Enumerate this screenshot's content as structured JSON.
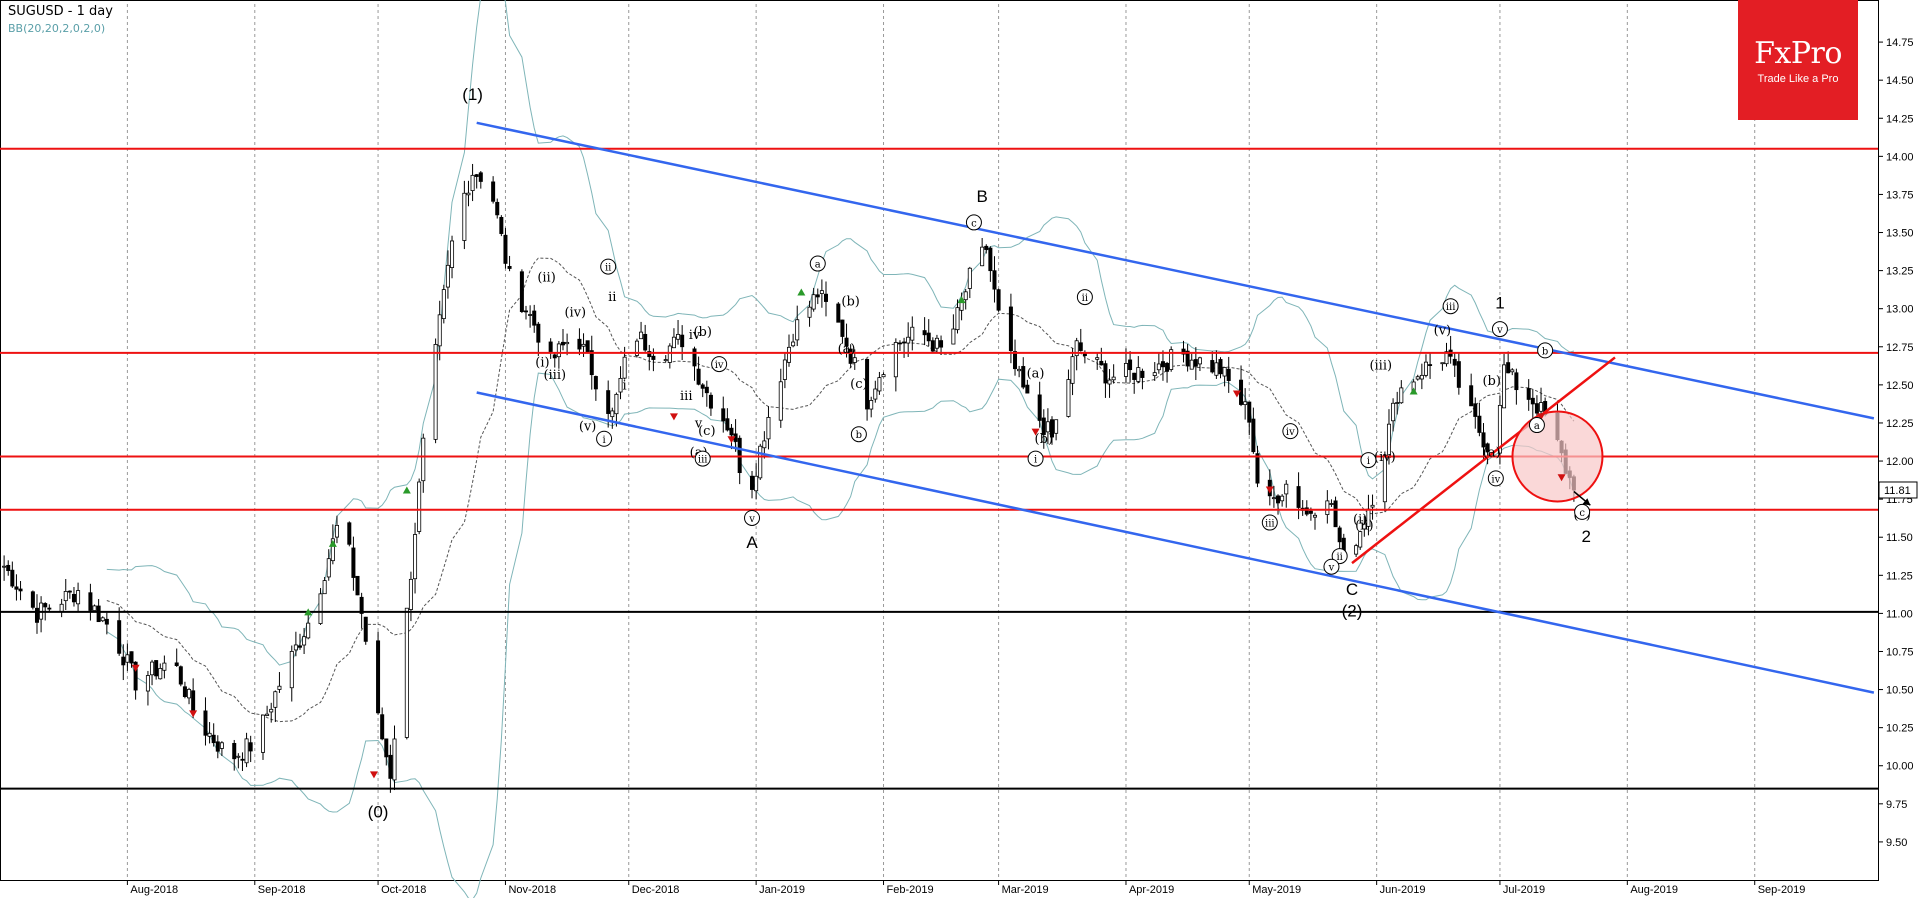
{
  "header": {
    "title": "SUGUSD - 1 day",
    "indicator": "BB(20,20,2,0,2,0)"
  },
  "logo": {
    "brand": "FxPro",
    "tagline": "Trade Like a Pro"
  },
  "current_price": "11.81",
  "colors": {
    "candle": "#000000",
    "bollinger": "#7fb5b8",
    "bollinger_mid": "#555555",
    "resistance": "#ee1111",
    "channel": "#3366ee",
    "support_black": "#000000",
    "highlight_circle": "#f8c8c8",
    "logo_bg": "#e31e24"
  },
  "chart_data": {
    "type": "candlestick",
    "symbol": "SUGUSD",
    "timeframe": "1 day",
    "ylim": [
      9.25,
      15.0
    ],
    "y_ticks": [
      "9.50",
      "9.75",
      "10.00",
      "10.25",
      "10.50",
      "10.75",
      "11.00",
      "11.25",
      "11.50",
      "11.75",
      "12.00",
      "12.25",
      "12.50",
      "12.75",
      "13.00",
      "13.25",
      "13.50",
      "13.75",
      "14.00",
      "14.25",
      "14.50",
      "14.75"
    ],
    "x_ticks": [
      "Aug-2018",
      "Sep-2018",
      "Oct-2018",
      "Nov-2018",
      "Dec-2018",
      "Jan-2019",
      "Feb-2019",
      "Mar-2019",
      "Apr-2019",
      "May-2019",
      "Jun-2019",
      "Jul-2019",
      "Aug-2019",
      "Sep-2019"
    ],
    "horizontal_levels": {
      "red": [
        14.05,
        12.71,
        12.03,
        11.68
      ],
      "black": [
        11.01,
        9.85
      ]
    },
    "channel_upper": [
      {
        "date": "2018-10-25",
        "price": 14.22
      },
      {
        "date": "2019-09-30",
        "price": 12.28
      }
    ],
    "channel_lower": [
      {
        "date": "2018-10-25",
        "price": 12.45
      },
      {
        "date": "2019-09-30",
        "price": 10.48
      }
    ],
    "trendline_red": [
      {
        "date": "2019-05-26",
        "price": 11.33
      },
      {
        "date": "2019-07-29",
        "price": 12.68
      }
    ],
    "path": [
      [
        "2018-07-01",
        11.35
      ],
      [
        "2018-07-10",
        11.0
      ],
      [
        "2018-07-20",
        11.15
      ],
      [
        "2018-07-28",
        10.9
      ],
      [
        "2018-08-03",
        10.55
      ],
      [
        "2018-08-12",
        10.7
      ],
      [
        "2018-08-18",
        10.3
      ],
      [
        "2018-08-26",
        10.05
      ],
      [
        "2018-09-01",
        10.15
      ],
      [
        "2018-09-08",
        10.6
      ],
      [
        "2018-09-15",
        11.0
      ],
      [
        "2018-09-22",
        11.65
      ],
      [
        "2018-09-27",
        11.0
      ],
      [
        "2018-10-01",
        10.3
      ],
      [
        "2018-10-04",
        9.95
      ],
      [
        "2018-10-08",
        11.0
      ],
      [
        "2018-10-12",
        12.1
      ],
      [
        "2018-10-16",
        12.9
      ],
      [
        "2018-10-20",
        13.6
      ],
      [
        "2018-10-24",
        13.9
      ],
      [
        "2018-10-28",
        13.85
      ],
      [
        "2018-11-02",
        13.2
      ],
      [
        "2018-11-08",
        12.9
      ],
      [
        "2018-11-12",
        12.65
      ],
      [
        "2018-11-18",
        12.85
      ],
      [
        "2018-11-22",
        12.6
      ],
      [
        "2018-11-27",
        12.3
      ],
      [
        "2018-12-02",
        12.85
      ],
      [
        "2018-12-08",
        12.7
      ],
      [
        "2018-12-14",
        12.8
      ],
      [
        "2018-12-20",
        12.45
      ],
      [
        "2018-12-26",
        12.2
      ],
      [
        "2018-12-30",
        11.75
      ],
      [
        "2019-01-04",
        12.3
      ],
      [
        "2019-01-10",
        12.85
      ],
      [
        "2019-01-16",
        13.1
      ],
      [
        "2019-01-22",
        12.85
      ],
      [
        "2019-01-28",
        12.4
      ],
      [
        "2019-02-03",
        12.75
      ],
      [
        "2019-02-10",
        12.85
      ],
      [
        "2019-02-16",
        12.7
      ],
      [
        "2019-02-22",
        13.2
      ],
      [
        "2019-02-26",
        13.4
      ],
      [
        "2019-03-02",
        12.8
      ],
      [
        "2019-03-08",
        12.4
      ],
      [
        "2019-03-14",
        12.15
      ],
      [
        "2019-03-20",
        12.75
      ],
      [
        "2019-03-28",
        12.55
      ],
      [
        "2019-04-06",
        12.6
      ],
      [
        "2019-04-15",
        12.7
      ],
      [
        "2019-04-24",
        12.6
      ],
      [
        "2019-05-01",
        12.3
      ],
      [
        "2019-05-04",
        11.65
      ],
      [
        "2019-05-10",
        11.85
      ],
      [
        "2019-05-15",
        11.65
      ],
      [
        "2019-05-20",
        11.8
      ],
      [
        "2019-05-24",
        11.35
      ],
      [
        "2019-05-28",
        11.55
      ],
      [
        "2019-06-01",
        11.85
      ],
      [
        "2019-06-06",
        12.45
      ],
      [
        "2019-06-12",
        12.6
      ],
      [
        "2019-06-18",
        12.7
      ],
      [
        "2019-06-24",
        12.3
      ],
      [
        "2019-06-29",
        12.05
      ],
      [
        "2019-07-02",
        12.6
      ],
      [
        "2019-07-05",
        12.5
      ],
      [
        "2019-07-09",
        12.4
      ],
      [
        "2019-07-13",
        12.25
      ],
      [
        "2019-07-17",
        11.95
      ],
      [
        "2019-07-19",
        11.81
      ]
    ],
    "wave_labels": [
      {
        "text": "(1)",
        "date": "2018-10-24",
        "price": 14.37
      },
      {
        "text": "(0)",
        "date": "2018-10-01",
        "price": 9.66
      },
      {
        "text": "B",
        "date": "2019-02-25",
        "price": 13.7
      },
      {
        "text": "A",
        "date": "2018-12-31",
        "price": 11.43
      },
      {
        "text": "C",
        "date": "2019-05-26",
        "price": 11.12
      },
      {
        "text": "(2)",
        "date": "2019-05-26",
        "price": 10.98
      },
      {
        "text": "1",
        "date": "2019-07-01",
        "price": 13.0
      },
      {
        "text": "2",
        "date": "2019-07-22",
        "price": 11.47
      },
      {
        "text": "ii",
        "date": "2018-11-27",
        "price": 13.05
      },
      {
        "text": "i",
        "date": "2018-11-30",
        "price": 12.47
      },
      {
        "text": "iii",
        "date": "2018-12-15",
        "price": 12.4
      },
      {
        "text": "v",
        "date": "2018-12-18",
        "price": 12.22
      },
      {
        "text": "iv",
        "date": "2018-12-17",
        "price": 12.8
      },
      {
        "text": "(i)",
        "date": "2018-11-10",
        "price": 12.62
      },
      {
        "text": "(ii)",
        "date": "2018-11-11",
        "price": 13.18
      },
      {
        "text": "(iii)",
        "date": "2018-11-13",
        "price": 12.54
      },
      {
        "text": "(iv)",
        "date": "2018-11-18",
        "price": 12.95
      },
      {
        "text": "(v)",
        "date": "2018-11-21",
        "price": 12.2
      },
      {
        "text": "(a)",
        "date": "2018-12-18",
        "price": 12.03
      },
      {
        "text": "(b)",
        "date": "2018-12-19",
        "price": 12.82
      },
      {
        "text": "(c)",
        "date": "2018-12-20",
        "price": 12.17
      },
      {
        "text": "(a)",
        "date": "2019-01-23",
        "price": 12.71
      },
      {
        "text": "(b)",
        "date": "2019-01-24",
        "price": 13.02
      },
      {
        "text": "(c)",
        "date": "2019-01-26",
        "price": 12.48
      },
      {
        "text": "(a)",
        "date": "2019-03-10",
        "price": 12.55
      },
      {
        "text": "(b)",
        "date": "2019-03-12",
        "price": 12.12
      },
      {
        "text": "(iii)",
        "date": "2019-06-02",
        "price": 12.6
      },
      {
        "text": "(iv)",
        "date": "2019-06-03",
        "price": 12.0
      },
      {
        "text": "(v)",
        "date": "2019-06-17",
        "price": 12.83
      },
      {
        "text": "(i)",
        "date": "2019-05-28",
        "price": 11.59
      },
      {
        "text": "(ii)",
        "date": "2019-05-29",
        "price": 11.55
      },
      {
        "text": "(a)",
        "date": "2019-06-29",
        "price": 12.03
      },
      {
        "text": "(b)",
        "date": "2019-06-29",
        "price": 12.5
      },
      {
        "text": "(c)",
        "date": "2019-07-21",
        "price": 11.62
      }
    ],
    "circled_labels": [
      {
        "text": "ii",
        "date": "2018-11-26",
        "price": 13.25
      },
      {
        "text": "i",
        "date": "2018-11-25",
        "price": 12.12
      },
      {
        "text": "iv",
        "date": "2018-12-23",
        "price": 12.61
      },
      {
        "text": "iii",
        "date": "2018-12-19",
        "price": 11.99
      },
      {
        "text": "v",
        "date": "2018-12-31",
        "price": 11.6
      },
      {
        "text": "a",
        "date": "2019-01-16",
        "price": 13.27
      },
      {
        "text": "b",
        "date": "2019-01-26",
        "price": 12.15
      },
      {
        "text": "c",
        "date": "2019-02-23",
        "price": 13.54
      },
      {
        "text": "ii",
        "date": "2019-03-22",
        "price": 13.05
      },
      {
        "text": "i",
        "date": "2019-03-10",
        "price": 11.99
      },
      {
        "text": "iv",
        "date": "2019-05-11",
        "price": 12.17
      },
      {
        "text": "iii",
        "date": "2019-05-06",
        "price": 11.57
      },
      {
        "text": "i",
        "date": "2019-05-30",
        "price": 11.98
      },
      {
        "text": "ii",
        "date": "2019-05-23",
        "price": 11.35
      },
      {
        "text": "v",
        "date": "2019-05-21",
        "price": 11.28
      },
      {
        "text": "iii",
        "date": "2019-06-19",
        "price": 12.99
      },
      {
        "text": "v",
        "date": "2019-07-01",
        "price": 12.84
      },
      {
        "text": "iv",
        "date": "2019-06-30",
        "price": 11.86
      },
      {
        "text": "b",
        "date": "2019-07-12",
        "price": 12.7
      },
      {
        "text": "a",
        "date": "2019-07-10",
        "price": 12.21
      },
      {
        "text": "c",
        "date": "2019-07-21",
        "price": 11.64
      }
    ],
    "markers": {
      "green_up": [
        [
          "2018-09-14",
          11.0
        ],
        [
          "2018-09-20",
          11.45
        ],
        [
          "2018-10-08",
          11.8
        ],
        [
          "2019-01-12",
          13.1
        ],
        [
          "2019-02-20",
          13.05
        ],
        [
          "2019-06-10",
          12.45
        ]
      ],
      "red_down": [
        [
          "2018-08-03",
          10.65
        ],
        [
          "2018-08-17",
          10.35
        ],
        [
          "2018-09-30",
          9.95
        ],
        [
          "2018-12-12",
          12.3
        ],
        [
          "2018-12-26",
          12.15
        ],
        [
          "2019-03-10",
          12.2
        ],
        [
          "2019-04-28",
          12.45
        ],
        [
          "2019-05-06",
          11.82
        ],
        [
          "2019-07-11",
          12.3
        ],
        [
          "2019-07-16",
          11.9
        ]
      ]
    }
  }
}
